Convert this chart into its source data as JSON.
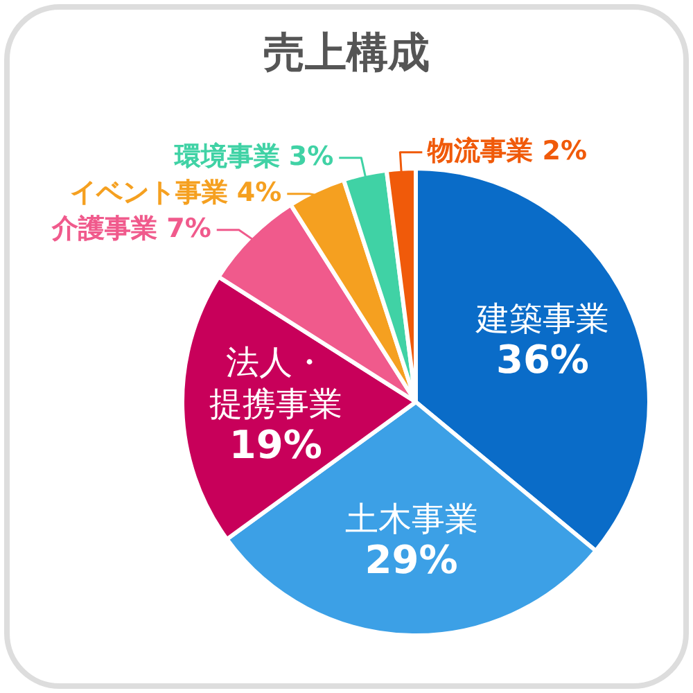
{
  "chart_data": {
    "type": "pie",
    "title": "売上構成",
    "categories": [
      "建築事業",
      "土木事業",
      "法人・提携事業",
      "介護事業",
      "イベント事業",
      "環境事業",
      "物流事業"
    ],
    "values": [
      36,
      29,
      19,
      7,
      4,
      3,
      2
    ],
    "value_labels": [
      "36%",
      "29%",
      "19%",
      "7%",
      "4%",
      "3%",
      "2%"
    ],
    "colors": [
      "#0a6cc8",
      "#3ca0e6",
      "#c8005a",
      "#f05a8c",
      "#f5a020",
      "#40d2a5",
      "#f05a0a"
    ],
    "legend": false
  }
}
